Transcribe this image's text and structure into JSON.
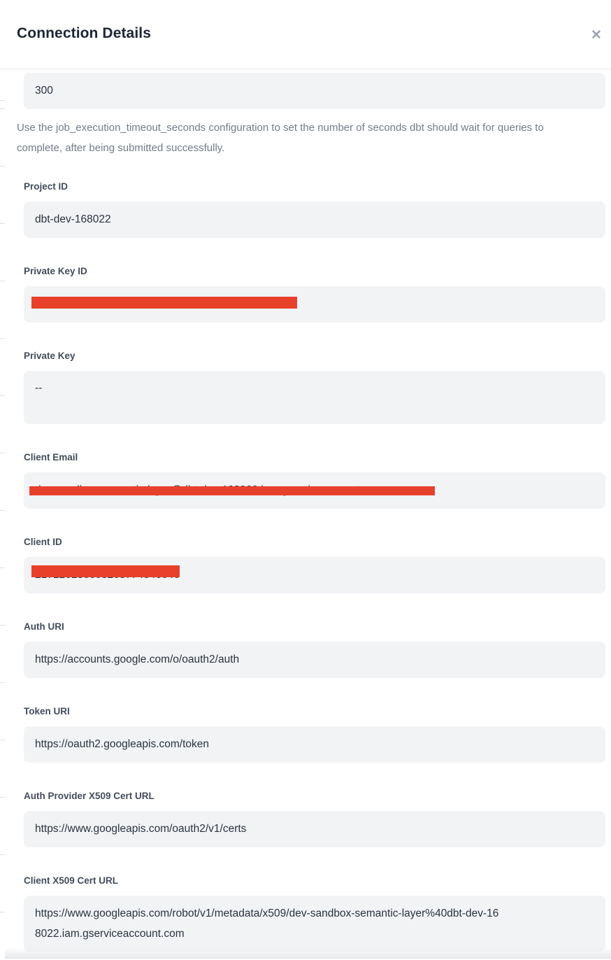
{
  "modal": {
    "title": "Connection Details",
    "close_icon": "✕"
  },
  "timeout": {
    "value": "300",
    "help": "Use the job_execution_timeout_seconds configuration to set the number of seconds dbt should wait for queries to complete, after being submitted successfully."
  },
  "fields": [
    {
      "label": "Project ID",
      "value": "dbt-dev-168022",
      "redacted": false
    },
    {
      "label": "Private Key ID",
      "value": "",
      "redacted": true
    },
    {
      "label": "Private Key",
      "value": "--",
      "redacted": false
    },
    {
      "label": "Client Email",
      "value": "dev-sandbox-semantic-layer@dbt-dev-168022.iam.gserviceaccount.com",
      "redacted": true
    },
    {
      "label": "Client ID",
      "value": "217126136603263774846646",
      "redacted": true
    },
    {
      "label": "Auth URI",
      "value": "https://accounts.google.com/o/oauth2/auth",
      "redacted": false
    },
    {
      "label": "Token URI",
      "value": "https://oauth2.googleapis.com/token",
      "redacted": false
    },
    {
      "label": "Auth Provider X509 Cert URL",
      "value": "https://www.googleapis.com/oauth2/v1/certs",
      "redacted": false
    },
    {
      "label": "Client X509 Cert URL",
      "value": "https://www.googleapis.com/robot/v1/metadata/x509/dev-sandbox-semantic-layer%40dbt-dev-168022.iam.gserviceaccount.com",
      "redacted": false
    }
  ],
  "colors": {
    "redaction_bar": "#e8412b",
    "field_background": "#f2f3f5",
    "title_text": "#1e2634"
  }
}
